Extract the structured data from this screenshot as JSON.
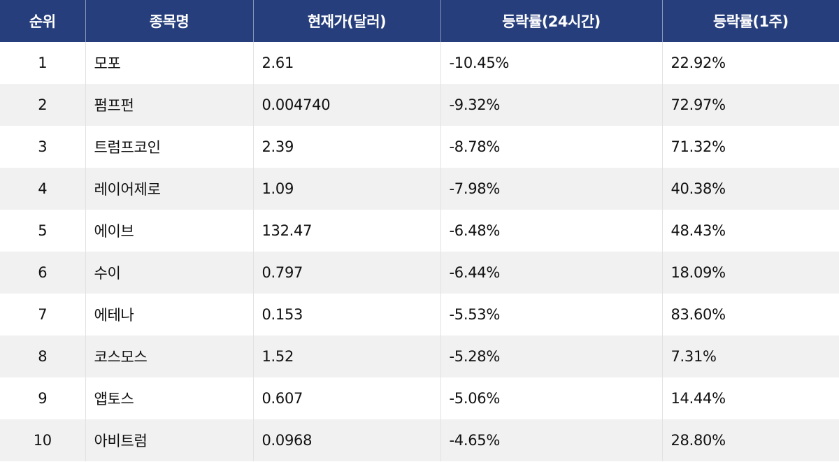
{
  "table": {
    "headers": [
      "순위",
      "종목명",
      "현재가(달러)",
      "등락률(24시간)",
      "등락률(1주)"
    ],
    "rows": [
      [
        "1",
        "모포",
        "2.61",
        "-10.45%",
        "22.92%"
      ],
      [
        "2",
        "펌프펀",
        "0.004740",
        "-9.32%",
        "72.97%"
      ],
      [
        "3",
        "트럼프코인",
        "2.39",
        "-8.78%",
        "71.32%"
      ],
      [
        "4",
        "레이어제로",
        "1.09",
        "-7.98%",
        "40.38%"
      ],
      [
        "5",
        "에이브",
        "132.47",
        "-6.48%",
        "48.43%"
      ],
      [
        "6",
        "수이",
        "0.797",
        "-6.44%",
        "18.09%"
      ],
      [
        "7",
        "에테나",
        "0.153",
        "-5.53%",
        "83.60%"
      ],
      [
        "8",
        "코스모스",
        "1.52",
        "-5.28%",
        "7.31%"
      ],
      [
        "9",
        "앱토스",
        "0.607",
        "-5.06%",
        "14.44%"
      ],
      [
        "10",
        "아비트럼",
        "0.0968",
        "-4.65%",
        "28.80%"
      ]
    ]
  },
  "colors": {
    "header_bg": "#263e7c",
    "header_text": "#ffffff",
    "row_alt_bg": "#f1f1f1"
  }
}
